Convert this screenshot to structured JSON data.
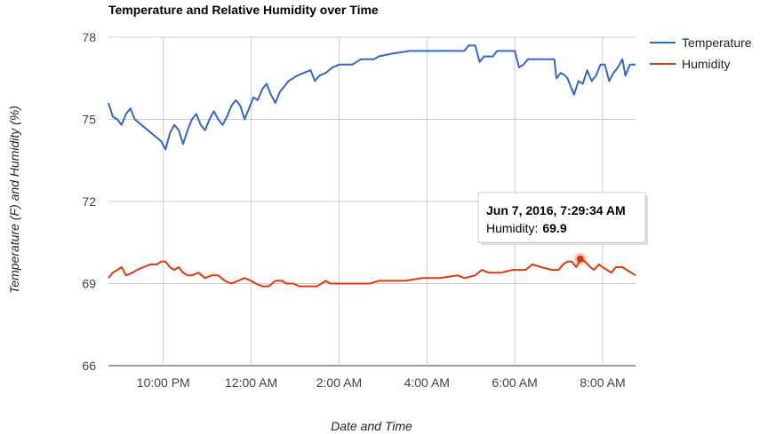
{
  "chart_data": {
    "type": "line",
    "title": "Temperature and Relative Humidity over Time",
    "xlabel": "Date and Time",
    "ylabel": "Temperature (F) and Humidity (%)",
    "ylim": [
      66,
      78
    ],
    "y_ticks": [
      66,
      69,
      72,
      75,
      78
    ],
    "x_ticks": [
      "10:00 PM",
      "12:00 AM",
      "2:00 AM",
      "4:00 AM",
      "6:00 AM",
      "8:00 AM"
    ],
    "x_tick_hours": [
      22,
      24,
      26,
      28,
      30,
      32
    ],
    "x_range_hours": [
      20.75,
      32.75
    ],
    "grid": true,
    "legend": "right",
    "series": [
      {
        "name": "Temperature",
        "color": "#3366cc",
        "points": [
          [
            20.75,
            75.6
          ],
          [
            20.85,
            75.1
          ],
          [
            20.95,
            75.0
          ],
          [
            21.05,
            74.8
          ],
          [
            21.15,
            75.2
          ],
          [
            21.25,
            75.4
          ],
          [
            21.35,
            75.0
          ],
          [
            21.5,
            74.8
          ],
          [
            21.65,
            74.6
          ],
          [
            21.8,
            74.4
          ],
          [
            21.95,
            74.2
          ],
          [
            22.05,
            73.9
          ],
          [
            22.15,
            74.5
          ],
          [
            22.25,
            74.8
          ],
          [
            22.35,
            74.6
          ],
          [
            22.45,
            74.1
          ],
          [
            22.55,
            74.6
          ],
          [
            22.65,
            75.0
          ],
          [
            22.75,
            75.2
          ],
          [
            22.85,
            74.8
          ],
          [
            22.95,
            74.6
          ],
          [
            23.05,
            75.0
          ],
          [
            23.15,
            75.3
          ],
          [
            23.25,
            75.0
          ],
          [
            23.35,
            74.8
          ],
          [
            23.45,
            75.1
          ],
          [
            23.55,
            75.5
          ],
          [
            23.65,
            75.7
          ],
          [
            23.75,
            75.5
          ],
          [
            23.85,
            75.0
          ],
          [
            23.95,
            75.4
          ],
          [
            24.05,
            75.8
          ],
          [
            24.15,
            75.7
          ],
          [
            24.25,
            76.1
          ],
          [
            24.35,
            76.3
          ],
          [
            24.45,
            75.9
          ],
          [
            24.55,
            75.6
          ],
          [
            24.65,
            76.0
          ],
          [
            24.75,
            76.2
          ],
          [
            24.85,
            76.4
          ],
          [
            24.95,
            76.5
          ],
          [
            25.05,
            76.6
          ],
          [
            25.2,
            76.7
          ],
          [
            25.35,
            76.8
          ],
          [
            25.45,
            76.4
          ],
          [
            25.55,
            76.6
          ],
          [
            25.7,
            76.7
          ],
          [
            25.85,
            76.9
          ],
          [
            26.0,
            77.0
          ],
          [
            26.3,
            77.0
          ],
          [
            26.5,
            77.2
          ],
          [
            26.8,
            77.2
          ],
          [
            26.9,
            77.3
          ],
          [
            27.2,
            77.4
          ],
          [
            27.6,
            77.5
          ],
          [
            28.0,
            77.5
          ],
          [
            28.5,
            77.5
          ],
          [
            28.85,
            77.5
          ],
          [
            28.95,
            77.7
          ],
          [
            29.1,
            77.7
          ],
          [
            29.2,
            77.1
          ],
          [
            29.3,
            77.3
          ],
          [
            29.5,
            77.3
          ],
          [
            29.6,
            77.5
          ],
          [
            29.8,
            77.5
          ],
          [
            30.0,
            77.5
          ],
          [
            30.1,
            76.9
          ],
          [
            30.2,
            77.0
          ],
          [
            30.3,
            77.2
          ],
          [
            30.9,
            77.2
          ],
          [
            30.95,
            76.5
          ],
          [
            31.05,
            76.7
          ],
          [
            31.15,
            76.6
          ],
          [
            31.2,
            76.5
          ],
          [
            31.35,
            75.9
          ],
          [
            31.45,
            76.4
          ],
          [
            31.55,
            76.3
          ],
          [
            31.65,
            76.8
          ],
          [
            31.75,
            76.4
          ],
          [
            31.85,
            76.6
          ],
          [
            31.95,
            77.0
          ],
          [
            32.05,
            77.0
          ],
          [
            32.15,
            76.4
          ],
          [
            32.25,
            76.7
          ],
          [
            32.35,
            76.9
          ],
          [
            32.45,
            77.2
          ],
          [
            32.52,
            76.6
          ],
          [
            32.62,
            77.0
          ],
          [
            32.75,
            77.0
          ]
        ]
      },
      {
        "name": "Humidity",
        "color": "#dc3912",
        "points": [
          [
            20.75,
            69.2
          ],
          [
            20.85,
            69.4
          ],
          [
            20.95,
            69.5
          ],
          [
            21.05,
            69.6
          ],
          [
            21.15,
            69.3
          ],
          [
            21.3,
            69.4
          ],
          [
            21.4,
            69.5
          ],
          [
            21.55,
            69.6
          ],
          [
            21.7,
            69.7
          ],
          [
            21.85,
            69.7
          ],
          [
            21.95,
            69.8
          ],
          [
            22.05,
            69.8
          ],
          [
            22.15,
            69.6
          ],
          [
            22.25,
            69.5
          ],
          [
            22.35,
            69.6
          ],
          [
            22.45,
            69.4
          ],
          [
            22.55,
            69.3
          ],
          [
            22.65,
            69.3
          ],
          [
            22.8,
            69.4
          ],
          [
            22.95,
            69.2
          ],
          [
            23.1,
            69.3
          ],
          [
            23.25,
            69.3
          ],
          [
            23.4,
            69.1
          ],
          [
            23.55,
            69.0
          ],
          [
            23.7,
            69.1
          ],
          [
            23.85,
            69.2
          ],
          [
            24.0,
            69.1
          ],
          [
            24.1,
            69.0
          ],
          [
            24.25,
            68.9
          ],
          [
            24.4,
            68.9
          ],
          [
            24.55,
            69.1
          ],
          [
            24.7,
            69.1
          ],
          [
            24.8,
            69.0
          ],
          [
            24.95,
            69.0
          ],
          [
            25.1,
            68.9
          ],
          [
            25.5,
            68.9
          ],
          [
            25.7,
            69.1
          ],
          [
            25.8,
            69.0
          ],
          [
            26.2,
            69.0
          ],
          [
            26.7,
            69.0
          ],
          [
            26.9,
            69.1
          ],
          [
            27.2,
            69.1
          ],
          [
            27.5,
            69.1
          ],
          [
            27.9,
            69.2
          ],
          [
            28.3,
            69.2
          ],
          [
            28.7,
            69.3
          ],
          [
            28.85,
            69.2
          ],
          [
            29.1,
            69.3
          ],
          [
            29.25,
            69.5
          ],
          [
            29.4,
            69.4
          ],
          [
            29.7,
            69.4
          ],
          [
            29.95,
            69.5
          ],
          [
            30.25,
            69.5
          ],
          [
            30.4,
            69.7
          ],
          [
            30.6,
            69.6
          ],
          [
            30.85,
            69.5
          ],
          [
            31.0,
            69.5
          ],
          [
            31.1,
            69.7
          ],
          [
            31.2,
            69.8
          ],
          [
            31.3,
            69.8
          ],
          [
            31.4,
            69.6
          ],
          [
            31.5,
            69.9
          ],
          [
            31.6,
            69.8
          ],
          [
            31.72,
            69.6
          ],
          [
            31.8,
            69.5
          ],
          [
            31.92,
            69.7
          ],
          [
            32.0,
            69.6
          ],
          [
            32.1,
            69.5
          ],
          [
            32.2,
            69.4
          ],
          [
            32.3,
            69.6
          ],
          [
            32.45,
            69.6
          ],
          [
            32.55,
            69.5
          ],
          [
            32.65,
            69.4
          ],
          [
            32.75,
            69.3
          ]
        ]
      }
    ],
    "tooltip": {
      "title": "Jun 7, 2016, 7:29:34 AM",
      "label": "Humidity:",
      "value": "69.9",
      "series": "Humidity",
      "x_hours": 31.492,
      "y": 69.9
    }
  }
}
